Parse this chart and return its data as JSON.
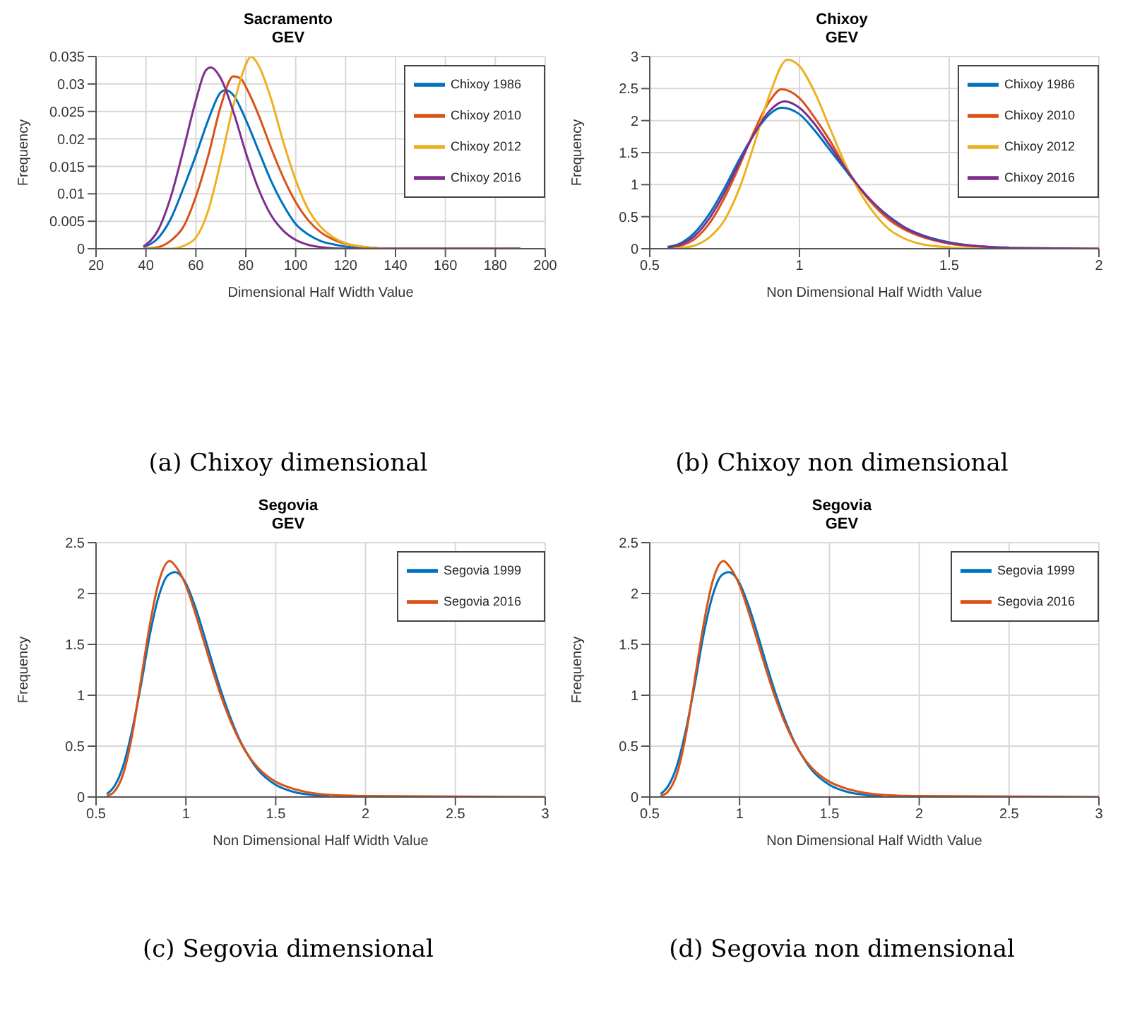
{
  "chart_data": [
    {
      "type": "line",
      "title": "Sacramento",
      "subtitle": "GEV",
      "xlabel": "Dimensional Half Width Value",
      "ylabel": "Frequency",
      "annotations": [
        "(a) Chixoy dimensional"
      ],
      "xlim": [
        20,
        200
      ],
      "xticks": [
        20,
        40,
        60,
        80,
        100,
        120,
        140,
        160,
        180,
        200
      ],
      "ylim": [
        0,
        0.035
      ],
      "yticks": [
        0,
        0.005,
        0.01,
        0.015,
        0.02,
        0.025,
        0.03,
        0.035
      ],
      "grid": true,
      "legend": "top right",
      "series": [
        {
          "name": "Chixoy 1986",
          "color": "#0072bd",
          "x": [
            39,
            45,
            50,
            55,
            60,
            65,
            70,
            72,
            75,
            80,
            85,
            90,
            95,
            100,
            105,
            110,
            115,
            120,
            130,
            140,
            190
          ],
          "values": [
            0.0003,
            0.002,
            0.0055,
            0.011,
            0.017,
            0.0235,
            0.0285,
            0.0289,
            0.028,
            0.0235,
            0.018,
            0.0125,
            0.008,
            0.0045,
            0.0026,
            0.0014,
            0.0008,
            0.0004,
            0.0001,
            0,
            0
          ]
        },
        {
          "name": "Chixoy 2010",
          "color": "#d95319",
          "x": [
            39,
            45,
            50,
            55,
            60,
            65,
            70,
            75,
            78,
            80,
            85,
            90,
            95,
            100,
            105,
            110,
            115,
            120,
            130,
            140,
            190
          ],
          "values": [
            0,
            0.0003,
            0.0015,
            0.004,
            0.0095,
            0.017,
            0.026,
            0.0314,
            0.031,
            0.0295,
            0.0245,
            0.0185,
            0.013,
            0.0085,
            0.0052,
            0.003,
            0.0017,
            0.0009,
            0.0002,
            0,
            0
          ]
        },
        {
          "name": "Chixoy 2012",
          "color": "#edb120",
          "x": [
            39,
            50,
            55,
            60,
            65,
            70,
            75,
            80,
            82,
            85,
            90,
            95,
            100,
            105,
            110,
            115,
            120,
            130,
            140,
            190
          ],
          "values": [
            0,
            0,
            0.0005,
            0.002,
            0.007,
            0.016,
            0.026,
            0.0335,
            0.035,
            0.0335,
            0.0275,
            0.0195,
            0.0125,
            0.0072,
            0.004,
            0.0021,
            0.001,
            0.0002,
            0,
            0
          ]
        },
        {
          "name": "Chixoy 2016",
          "color": "#7e2f8e",
          "x": [
            39,
            45,
            50,
            55,
            60,
            64,
            66,
            70,
            75,
            80,
            85,
            90,
            95,
            100,
            105,
            110,
            120,
            190
          ],
          "values": [
            0.0004,
            0.0035,
            0.0095,
            0.018,
            0.027,
            0.0325,
            0.033,
            0.031,
            0.025,
            0.0175,
            0.011,
            0.0062,
            0.0033,
            0.0016,
            0.0007,
            0.0003,
            0,
            0
          ]
        }
      ]
    },
    {
      "type": "line",
      "title": "Chixoy",
      "subtitle": "GEV",
      "xlabel": "Non Dimensional Half Width Value",
      "ylabel": "Frequency",
      "annotations": [
        "(b) Chixoy non dimensional"
      ],
      "xlim": [
        0.5,
        2
      ],
      "xticks": [
        0.5,
        1,
        1.5,
        2
      ],
      "ylim": [
        0,
        3
      ],
      "yticks": [
        0,
        0.5,
        1,
        1.5,
        2,
        2.5,
        3
      ],
      "grid": true,
      "legend": "top right",
      "series": [
        {
          "name": "Chixoy 1986",
          "color": "#0072bd",
          "x": [
            0.56,
            0.6,
            0.65,
            0.7,
            0.75,
            0.8,
            0.85,
            0.9,
            0.94,
            1,
            1.05,
            1.1,
            1.15,
            1.2,
            1.25,
            1.3,
            1.35,
            1.4,
            1.5,
            1.6,
            1.7
          ],
          "values": [
            0.03,
            0.08,
            0.25,
            0.55,
            0.95,
            1.4,
            1.8,
            2.1,
            2.2,
            2.1,
            1.85,
            1.55,
            1.25,
            0.95,
            0.7,
            0.5,
            0.34,
            0.23,
            0.1,
            0.04,
            0.02
          ]
        },
        {
          "name": "Chixoy 2010",
          "color": "#d95319",
          "x": [
            0.56,
            0.6,
            0.65,
            0.7,
            0.75,
            0.8,
            0.85,
            0.9,
            0.94,
            1,
            1.05,
            1.1,
            1.15,
            1.2,
            1.25,
            1.3,
            1.35,
            1.4,
            1.5,
            1.6,
            1.7,
            2
          ],
          "values": [
            0.01,
            0.04,
            0.15,
            0.4,
            0.8,
            1.3,
            1.85,
            2.3,
            2.49,
            2.35,
            2.05,
            1.7,
            1.3,
            0.95,
            0.67,
            0.45,
            0.3,
            0.2,
            0.08,
            0.03,
            0.01,
            0
          ]
        },
        {
          "name": "Chixoy 2012",
          "color": "#edb120",
          "x": [
            0.56,
            0.6,
            0.65,
            0.7,
            0.75,
            0.8,
            0.85,
            0.9,
            0.96,
            1,
            1.05,
            1.1,
            1.15,
            1.2,
            1.25,
            1.3,
            1.35,
            1.4,
            1.5,
            1.6,
            2
          ],
          "values": [
            0,
            0.01,
            0.05,
            0.18,
            0.45,
            0.95,
            1.65,
            2.4,
            2.95,
            2.85,
            2.45,
            1.9,
            1.35,
            0.9,
            0.55,
            0.3,
            0.16,
            0.08,
            0.02,
            0,
            0
          ]
        },
        {
          "name": "Chixoy 2016",
          "color": "#7e2f8e",
          "x": [
            0.56,
            0.6,
            0.65,
            0.7,
            0.75,
            0.8,
            0.85,
            0.9,
            0.95,
            1,
            1.05,
            1.1,
            1.15,
            1.2,
            1.25,
            1.3,
            1.35,
            1.4,
            1.5,
            1.6,
            1.7,
            2
          ],
          "values": [
            0.02,
            0.06,
            0.2,
            0.48,
            0.88,
            1.35,
            1.8,
            2.15,
            2.3,
            2.2,
            1.95,
            1.62,
            1.28,
            0.96,
            0.7,
            0.49,
            0.33,
            0.22,
            0.09,
            0.04,
            0.01,
            0
          ]
        }
      ]
    },
    {
      "type": "line",
      "title": "Segovia",
      "subtitle": "GEV",
      "xlabel": "Non Dimensional Half Width Value",
      "ylabel": "Frequency",
      "annotations": [
        "(c) Segovia dimensional"
      ],
      "xlim": [
        0.5,
        3
      ],
      "xticks": [
        0.5,
        1,
        1.5,
        2,
        2.5,
        3
      ],
      "ylim": [
        0,
        2.5
      ],
      "yticks": [
        0,
        0.5,
        1,
        1.5,
        2,
        2.5
      ],
      "grid": true,
      "legend": "top right",
      "series": [
        {
          "name": "Segovia 1999",
          "color": "#0072bd",
          "x": [
            0.56,
            0.6,
            0.65,
            0.7,
            0.75,
            0.8,
            0.85,
            0.9,
            0.94,
            1,
            1.05,
            1.1,
            1.15,
            1.2,
            1.25,
            1.3,
            1.35,
            1.4,
            1.5,
            1.6,
            1.7,
            1.8
          ],
          "values": [
            0.03,
            0.1,
            0.3,
            0.65,
            1.1,
            1.6,
            1.98,
            2.18,
            2.21,
            2.1,
            1.88,
            1.6,
            1.3,
            1.02,
            0.77,
            0.56,
            0.4,
            0.27,
            0.12,
            0.05,
            0.02,
            0.01
          ]
        },
        {
          "name": "Segovia 2016",
          "color": "#d95319",
          "x": [
            0.56,
            0.6,
            0.65,
            0.7,
            0.75,
            0.8,
            0.85,
            0.91,
            0.95,
            1,
            1.05,
            1.1,
            1.15,
            1.2,
            1.25,
            1.3,
            1.35,
            1.4,
            1.5,
            1.6,
            1.7,
            1.8,
            2,
            3
          ],
          "values": [
            0.01,
            0.05,
            0.22,
            0.6,
            1.15,
            1.7,
            2.12,
            2.32,
            2.25,
            2.08,
            1.82,
            1.53,
            1.24,
            0.97,
            0.74,
            0.55,
            0.4,
            0.29,
            0.15,
            0.08,
            0.04,
            0.02,
            0.01,
            0
          ]
        }
      ]
    },
    {
      "type": "line",
      "title": "Segovia",
      "subtitle": "GEV",
      "xlabel": "Non Dimensional Half Width Value",
      "ylabel": "Frequency",
      "annotations": [
        "(d) Segovia non dimensional"
      ],
      "xlim": [
        0.5,
        3
      ],
      "xticks": [
        0.5,
        1,
        1.5,
        2,
        2.5,
        3
      ],
      "ylim": [
        0,
        2.5
      ],
      "yticks": [
        0,
        0.5,
        1,
        1.5,
        2,
        2.5
      ],
      "grid": true,
      "legend": "top right",
      "series": [
        {
          "name": "Segovia 1999",
          "color": "#0072bd",
          "x": [
            0.56,
            0.6,
            0.65,
            0.7,
            0.75,
            0.8,
            0.85,
            0.9,
            0.94,
            1,
            1.05,
            1.1,
            1.15,
            1.2,
            1.25,
            1.3,
            1.35,
            1.4,
            1.5,
            1.6,
            1.7,
            1.8
          ],
          "values": [
            0.03,
            0.1,
            0.3,
            0.65,
            1.1,
            1.6,
            1.98,
            2.18,
            2.21,
            2.1,
            1.88,
            1.6,
            1.3,
            1.02,
            0.77,
            0.56,
            0.4,
            0.27,
            0.12,
            0.05,
            0.02,
            0.01
          ]
        },
        {
          "name": "Segovia 2016",
          "color": "#d95319",
          "x": [
            0.56,
            0.6,
            0.65,
            0.7,
            0.75,
            0.8,
            0.85,
            0.91,
            0.95,
            1,
            1.05,
            1.1,
            1.15,
            1.2,
            1.25,
            1.3,
            1.35,
            1.4,
            1.5,
            1.6,
            1.7,
            1.8,
            2,
            3
          ],
          "values": [
            0.01,
            0.05,
            0.22,
            0.6,
            1.15,
            1.7,
            2.12,
            2.32,
            2.25,
            2.08,
            1.82,
            1.53,
            1.24,
            0.97,
            0.74,
            0.55,
            0.4,
            0.29,
            0.15,
            0.08,
            0.04,
            0.02,
            0.01,
            0
          ]
        }
      ]
    }
  ]
}
